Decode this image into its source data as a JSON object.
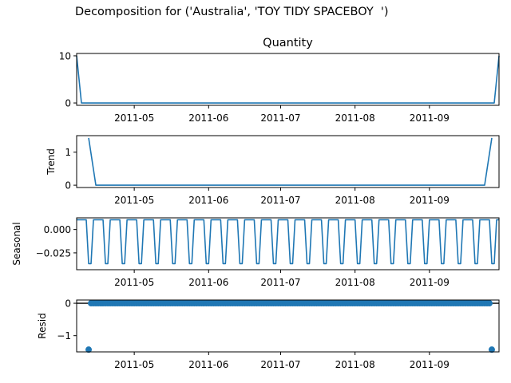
{
  "suptitle": "Decomposition for ('Australia', 'TOY TIDY SPACEBOY  ')",
  "chart_data": [
    {
      "type": "line",
      "title": "Quantity",
      "ylabel": "",
      "x_range": [
        "2011-04-07",
        "2011-09-30"
      ],
      "x_tick_labels": [
        "2011-05",
        "2011-06",
        "2011-07",
        "2011-08",
        "2011-09"
      ],
      "y_ticks": [
        0,
        10
      ],
      "ylim": [
        -0.5,
        10.5
      ],
      "series": [
        {
          "color": "#1f77b4",
          "points": [
            [
              "2011-04-07",
              10
            ],
            [
              "2011-04-09",
              0
            ],
            [
              "2011-09-28",
              0
            ],
            [
              "2011-09-30",
              10
            ]
          ]
        }
      ]
    },
    {
      "type": "line",
      "title": "",
      "ylabel": "Trend",
      "x_range": [
        "2011-04-07",
        "2011-09-30"
      ],
      "x_tick_labels": [
        "2011-05",
        "2011-06",
        "2011-07",
        "2011-08",
        "2011-09"
      ],
      "y_ticks": [
        0,
        1
      ],
      "ylim": [
        -0.07,
        1.5
      ],
      "series": [
        {
          "color": "#1f77b4",
          "points": [
            [
              "2011-04-12",
              1.43
            ],
            [
              "2011-04-15",
              0
            ],
            [
              "2011-09-24",
              0
            ],
            [
              "2011-09-27",
              1.43
            ]
          ]
        }
      ]
    },
    {
      "type": "line",
      "title": "",
      "ylabel": "Seasonal",
      "x_range": [
        "2011-04-07",
        "2011-09-30"
      ],
      "x_tick_labels": [
        "2011-05",
        "2011-06",
        "2011-07",
        "2011-08",
        "2011-09"
      ],
      "y_ticks": [
        0.0,
        -0.025
      ],
      "y_tick_labels": [
        "0.000",
        "−0.025"
      ],
      "ylim": [
        -0.043,
        0.0125
      ],
      "series": [
        {
          "color": "#1f77b4",
          "period_days": 7,
          "weekly_pattern": [
            0.0104,
            0.0104,
            0.0104,
            0.0104,
            0.0104,
            -0.0365,
            -0.0365
          ],
          "start": "2011-04-07",
          "end": "2011-09-30"
        }
      ]
    },
    {
      "type": "scatter",
      "title": "",
      "ylabel": "Resid",
      "x_range": [
        "2011-04-07",
        "2011-09-30"
      ],
      "x_tick_labels": [
        "2011-05",
        "2011-06",
        "2011-07",
        "2011-08",
        "2011-09"
      ],
      "y_ticks": [
        0,
        -1
      ],
      "y_tick_labels": [
        "0",
        "−1"
      ],
      "ylim": [
        -1.5,
        0.1
      ],
      "zero_line": true,
      "series": [
        {
          "color": "#1f77b4",
          "start": "2011-04-12",
          "end": "2011-09-27",
          "value_default": 0,
          "outliers": [
            [
              "2011-04-12",
              -1.43
            ],
            [
              "2011-09-27",
              -1.43
            ]
          ]
        }
      ]
    }
  ]
}
